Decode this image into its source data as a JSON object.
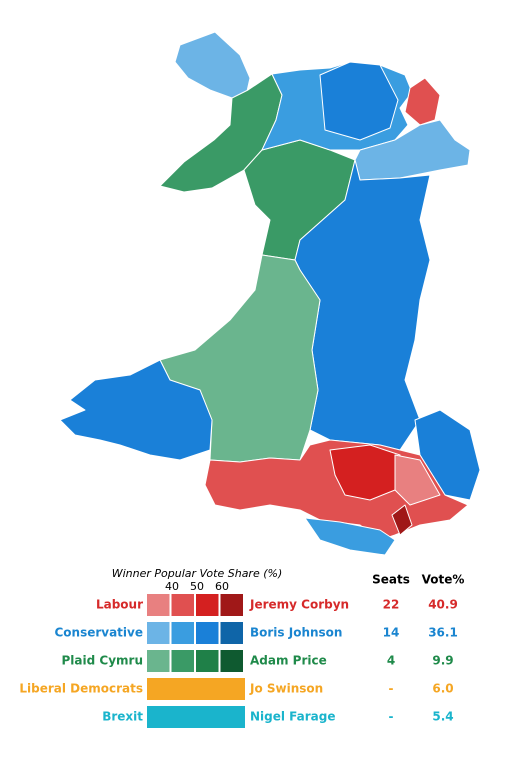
{
  "legend": {
    "title": "Winner Popular Vote Share (%)",
    "ticks": [
      "40",
      "50",
      "60"
    ]
  },
  "headers": {
    "seats": "Seats",
    "vote": "Vote%"
  },
  "parties": [
    {
      "name": "Labour",
      "leader": "Jeremy Corbyn",
      "seats": "22",
      "vote": "40.9"
    },
    {
      "name": "Conservative",
      "leader": "Boris Johnson",
      "seats": "14",
      "vote": "36.1"
    },
    {
      "name": "Plaid Cymru",
      "leader": "Adam Price",
      "seats": "4",
      "vote": "9.9"
    },
    {
      "name": "Liberal Democrats",
      "leader": "Jo Swinson",
      "seats": "-",
      "vote": "6.0"
    },
    {
      "name": "Brexit",
      "leader": "Nigel Farage",
      "seats": "-",
      "vote": "5.4"
    }
  ]
}
